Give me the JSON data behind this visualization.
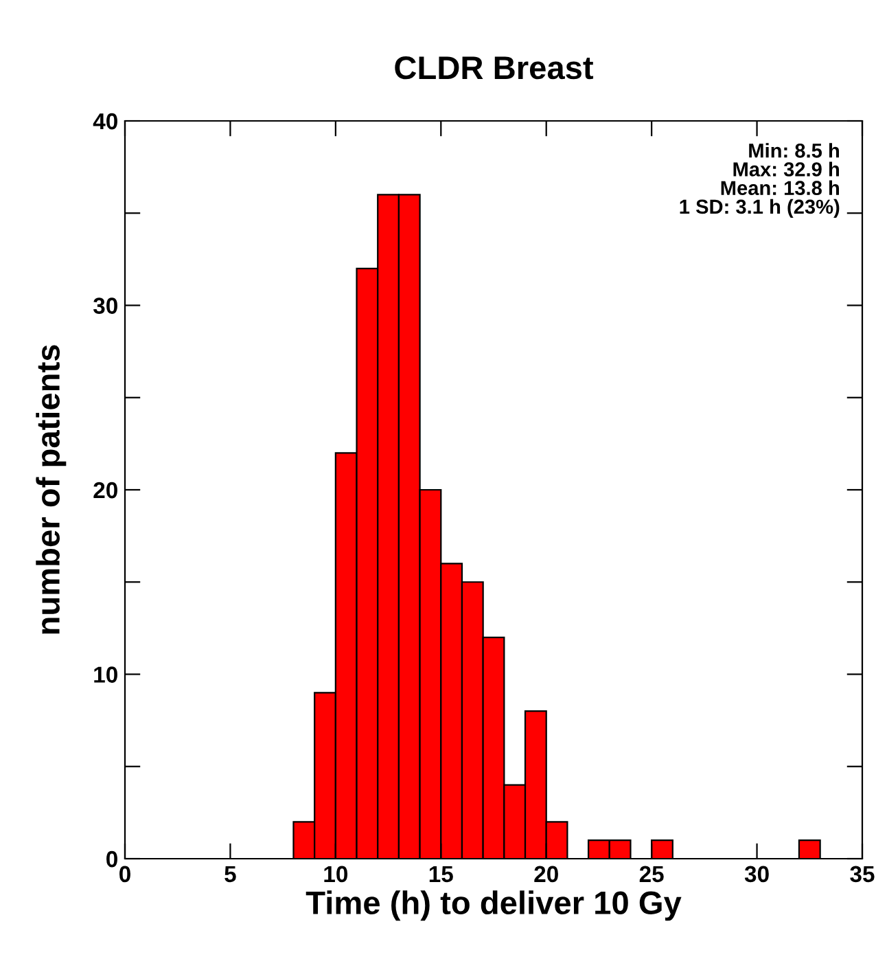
{
  "chart_data": {
    "type": "histogram",
    "title": "CLDR Breast",
    "xlabel": "Time (h) to deliver 10 Gy",
    "ylabel": "number of patients",
    "bins": [
      8,
      9,
      10,
      11,
      12,
      13,
      14,
      15,
      16,
      17,
      18,
      19,
      20,
      21,
      22,
      23,
      24,
      25,
      26,
      27,
      28,
      29,
      30,
      31,
      32,
      33
    ],
    "values": [
      2,
      9,
      22,
      32,
      36,
      36,
      20,
      16,
      15,
      12,
      4,
      8,
      2,
      0,
      1,
      1,
      0,
      1,
      0,
      0,
      0,
      0,
      0,
      0,
      1
    ],
    "color": "#ff0000",
    "xlim": [
      0,
      35
    ],
    "xticks": [
      0,
      5,
      10,
      15,
      20,
      25,
      30,
      35
    ],
    "ylim": [
      0,
      40
    ],
    "yticks": [
      0,
      {
        "value": 5,
        "label": null
      },
      10,
      {
        "value": 15,
        "label": null
      },
      20,
      {
        "value": 25,
        "label": null
      },
      30,
      {
        "value": 35,
        "label": null
      },
      40
    ],
    "grid": false,
    "legend": false,
    "annotations": [
      "Min: 8.5 h\nMax: 32.9 h\nMean: 13.8 h\n1 SD: 3.1 h (23%)"
    ]
  }
}
